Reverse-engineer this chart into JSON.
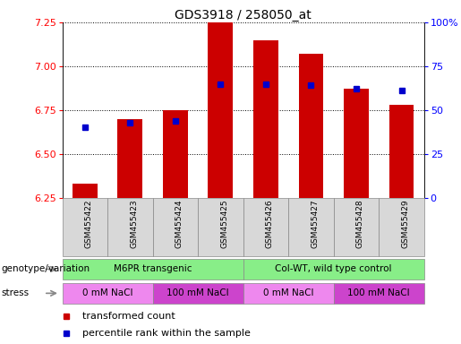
{
  "title": "GDS3918 / 258050_at",
  "samples": [
    "GSM455422",
    "GSM455423",
    "GSM455424",
    "GSM455425",
    "GSM455426",
    "GSM455427",
    "GSM455428",
    "GSM455429"
  ],
  "transformed_count": [
    6.33,
    6.7,
    6.75,
    7.25,
    7.15,
    7.07,
    6.87,
    6.78
  ],
  "percentile_rank": [
    40,
    43,
    44,
    65,
    65,
    64,
    62,
    61
  ],
  "ylim_left": [
    6.25,
    7.25
  ],
  "ylim_right": [
    0,
    100
  ],
  "yticks_left": [
    6.25,
    6.5,
    6.75,
    7.0,
    7.25
  ],
  "yticks_right": [
    0,
    25,
    50,
    75,
    100
  ],
  "ytick_labels_right": [
    "0",
    "25",
    "50",
    "75",
    "100%"
  ],
  "bar_color": "#cc0000",
  "dot_color": "#0000cc",
  "bar_width": 0.55,
  "genotype_groups": [
    {
      "label": "M6PR transgenic",
      "start": 0,
      "end": 4,
      "color": "#88ee88"
    },
    {
      "label": "Col-WT, wild type control",
      "start": 4,
      "end": 8,
      "color": "#88ee88"
    }
  ],
  "stress_groups": [
    {
      "label": "0 mM NaCl",
      "start": 0,
      "end": 2,
      "color": "#ee88ee"
    },
    {
      "label": "100 mM NaCl",
      "start": 2,
      "end": 4,
      "color": "#cc44cc"
    },
    {
      "label": "0 mM NaCl",
      "start": 4,
      "end": 6,
      "color": "#ee88ee"
    },
    {
      "label": "100 mM NaCl",
      "start": 6,
      "end": 8,
      "color": "#cc44cc"
    }
  ],
  "legend_items": [
    {
      "label": "transformed count",
      "color": "#cc0000"
    },
    {
      "label": "percentile rank within the sample",
      "color": "#0000cc"
    }
  ],
  "title_fontsize": 10,
  "tick_fontsize": 8,
  "label_fontsize": 8,
  "row_label_fontsize": 8
}
